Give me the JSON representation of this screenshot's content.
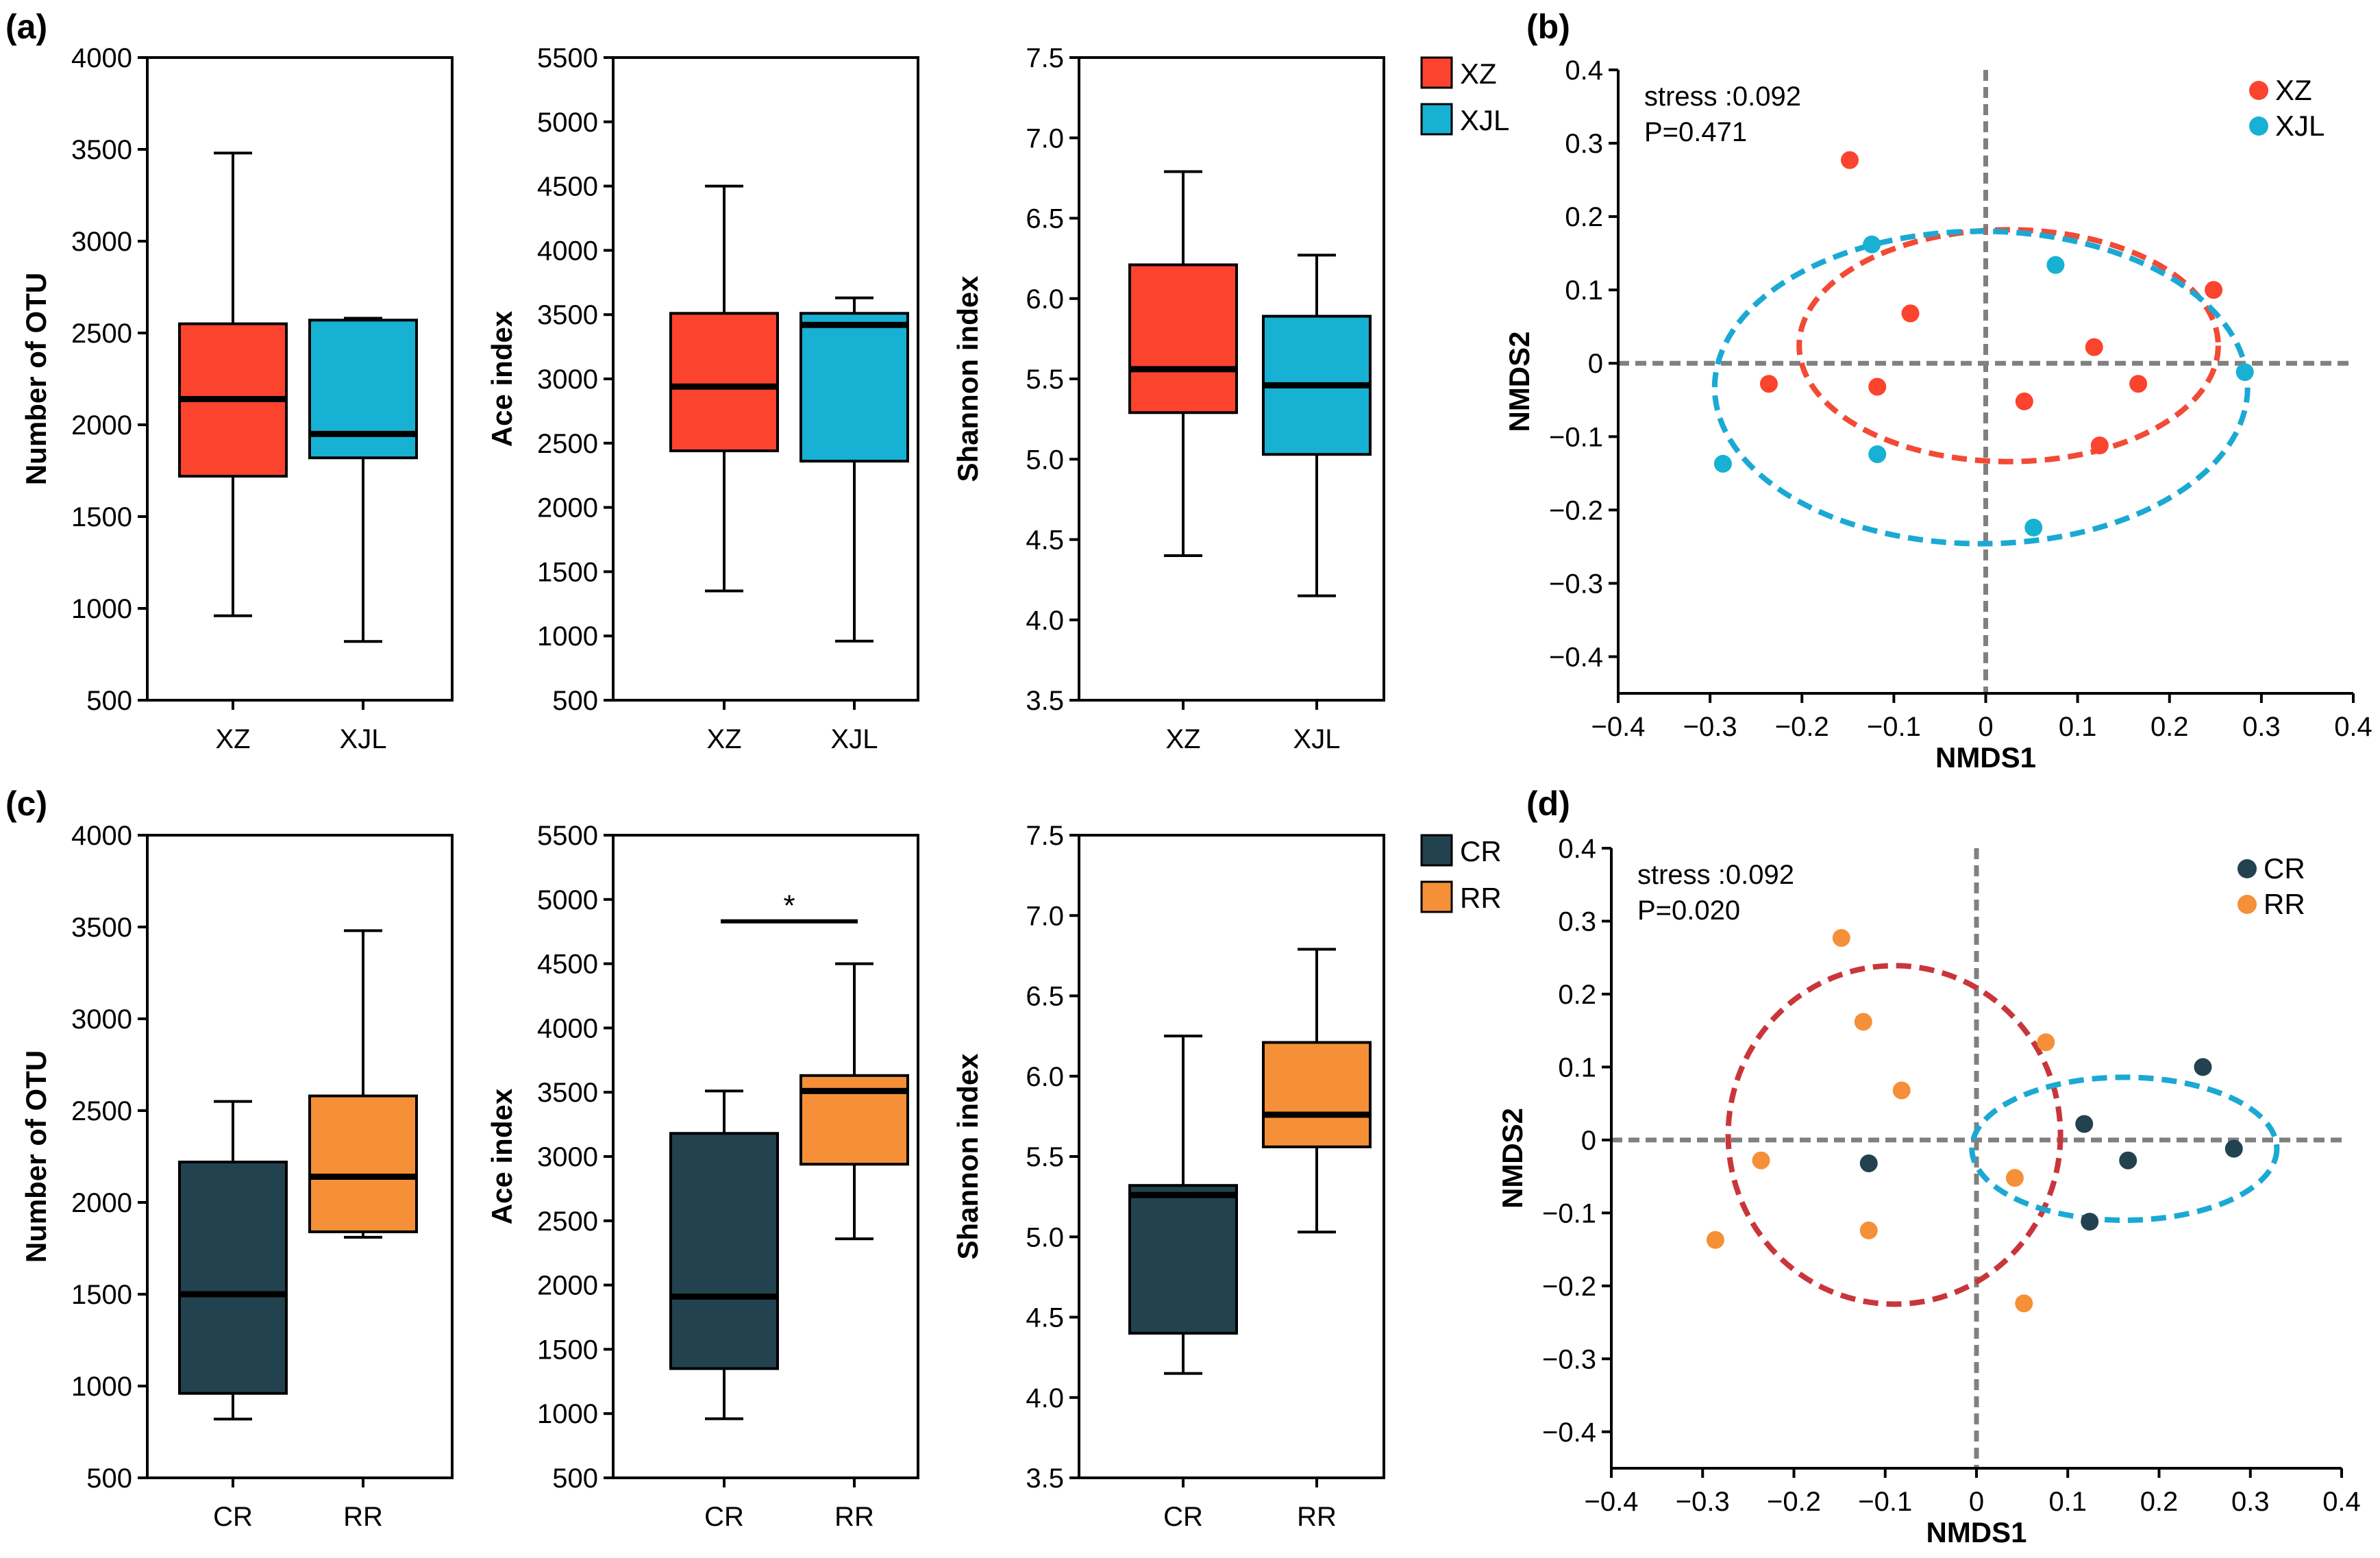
{
  "colors": {
    "XZ": "#fb432d",
    "XJL": "#17b1d3",
    "CR": "#23424f",
    "RR": "#f59038",
    "ellipse_XZ": "#f24a35",
    "ellipse_XJL": "#1ba9d4",
    "ellipse_CR": "#1ba9d4",
    "ellipse_RR": "#c9363a",
    "axis": "#000000",
    "crosshair": "#808080"
  },
  "chart_data": [
    {
      "id": "a1",
      "panel_label": "(a)",
      "type": "box",
      "ylabel": "Number of OTU",
      "ylim": [
        500,
        4000
      ],
      "yticks": [
        500,
        1000,
        1500,
        2000,
        2500,
        3000,
        3500,
        4000
      ],
      "categories": [
        "XZ",
        "XJL"
      ],
      "boxes": [
        {
          "group": "XZ",
          "min": 960,
          "q1": 1720,
          "median": 2140,
          "q3": 2550,
          "max": 3480
        },
        {
          "group": "XJL",
          "min": 820,
          "q1": 1820,
          "median": 1950,
          "q3": 2570,
          "max": 2580
        }
      ]
    },
    {
      "id": "a2",
      "type": "box",
      "ylabel": "Ace index",
      "ylim": [
        500,
        5500
      ],
      "yticks": [
        500,
        1000,
        1500,
        2000,
        2500,
        3000,
        3500,
        4000,
        4500,
        5000,
        5500
      ],
      "categories": [
        "XZ",
        "XJL"
      ],
      "boxes": [
        {
          "group": "XZ",
          "min": 1350,
          "q1": 2440,
          "median": 2940,
          "q3": 3510,
          "max": 4500
        },
        {
          "group": "XJL",
          "min": 960,
          "q1": 2360,
          "median": 3420,
          "q3": 3510,
          "max": 3630
        }
      ]
    },
    {
      "id": "a3",
      "type": "box",
      "ylabel": "Shannon index",
      "ylim": [
        3.5,
        7.5
      ],
      "yticks": [
        "3.5",
        "4.0",
        "4.5",
        "5.0",
        "5.5",
        "6.0",
        "6.5",
        "7.0",
        "7.5"
      ],
      "categories": [
        "XZ",
        "XJL"
      ],
      "legend": [
        "XZ",
        "XJL"
      ],
      "boxes": [
        {
          "group": "XZ",
          "min": 4.4,
          "q1": 5.29,
          "median": 5.56,
          "q3": 6.21,
          "max": 6.79
        },
        {
          "group": "XJL",
          "min": 4.15,
          "q1": 5.03,
          "median": 5.46,
          "q3": 5.89,
          "max": 6.27
        }
      ]
    },
    {
      "id": "b",
      "panel_label": "(b)",
      "type": "scatter",
      "xlabel": "NMDS1",
      "ylabel": "NMDS2",
      "xlim": [
        -0.4,
        0.4
      ],
      "ylim": [
        -0.45,
        0.4
      ],
      "xticks": [
        "−0.4",
        "−0.3",
        "−0.2",
        "−0.1",
        "0",
        "0.1",
        "0.2",
        "0.3",
        "0.4"
      ],
      "yticks": [
        "−0.4",
        "−0.3",
        "−0.2",
        "−0.1",
        "0",
        "0.1",
        "0.2",
        "0.3",
        "0.4"
      ],
      "annotations": [
        "stress :0.092",
        "P=0.471"
      ],
      "legend": [
        "XZ",
        "XJL"
      ],
      "series": [
        {
          "name": "XZ",
          "points": [
            [
              -0.148,
              0.277
            ],
            [
              -0.082,
              0.068
            ],
            [
              -0.236,
              -0.028
            ],
            [
              -0.118,
              -0.032
            ],
            [
              0.042,
              -0.052
            ],
            [
              0.118,
              0.022
            ],
            [
              0.166,
              -0.028
            ],
            [
              0.124,
              -0.112
            ],
            [
              0.248,
              0.1
            ]
          ]
        },
        {
          "name": "XJL",
          "points": [
            [
              -0.286,
              -0.137
            ],
            [
              -0.124,
              0.162
            ],
            [
              -0.118,
              -0.124
            ],
            [
              0.076,
              0.134
            ],
            [
              0.052,
              -0.224
            ],
            [
              0.282,
              -0.012
            ]
          ]
        }
      ],
      "ellipses": [
        {
          "name": "XZ",
          "cx": 0.025,
          "cy": 0.024,
          "rx": 0.228,
          "ry": 0.158
        },
        {
          "name": "XJL",
          "cx": -0.005,
          "cy": -0.033,
          "rx": 0.29,
          "ry": 0.213
        }
      ]
    },
    {
      "id": "c1",
      "panel_label": "(c)",
      "type": "box",
      "ylabel": "Number of OTU",
      "ylim": [
        500,
        4000
      ],
      "yticks": [
        500,
        1000,
        1500,
        2000,
        2500,
        3000,
        3500,
        4000
      ],
      "categories": [
        "CR",
        "RR"
      ],
      "boxes": [
        {
          "group": "CR",
          "min": 820,
          "q1": 960,
          "median": 1500,
          "q3": 2220,
          "max": 2550
        },
        {
          "group": "RR",
          "min": 1810,
          "q1": 1840,
          "median": 2140,
          "q3": 2580,
          "max": 3480
        }
      ]
    },
    {
      "id": "c2",
      "type": "box",
      "ylabel": "Ace index",
      "ylim": [
        500,
        5500
      ],
      "yticks": [
        500,
        1000,
        1500,
        2000,
        2500,
        3000,
        3500,
        4000,
        4500,
        5000,
        5500
      ],
      "categories": [
        "CR",
        "RR"
      ],
      "significance": {
        "label": "*",
        "y": 4830
      },
      "boxes": [
        {
          "group": "CR",
          "min": 960,
          "q1": 1350,
          "median": 1910,
          "q3": 3180,
          "max": 3510
        },
        {
          "group": "RR",
          "min": 2360,
          "q1": 2940,
          "median": 3510,
          "q3": 3630,
          "max": 4500
        }
      ]
    },
    {
      "id": "c3",
      "type": "box",
      "ylabel": "Shannon index",
      "ylim": [
        3.5,
        7.5
      ],
      "yticks": [
        "3.5",
        "4.0",
        "4.5",
        "5.0",
        "5.5",
        "6.0",
        "6.5",
        "7.0",
        "7.5"
      ],
      "categories": [
        "CR",
        "RR"
      ],
      "legend": [
        "CR",
        "RR"
      ],
      "boxes": [
        {
          "group": "CR",
          "min": 4.15,
          "q1": 4.4,
          "median": 5.26,
          "q3": 5.32,
          "max": 6.25
        },
        {
          "group": "RR",
          "min": 5.03,
          "q1": 5.56,
          "median": 5.76,
          "q3": 6.21,
          "max": 6.79
        }
      ]
    },
    {
      "id": "d",
      "panel_label": "(d)",
      "type": "scatter",
      "xlabel": "NMDS1",
      "ylabel": "NMDS2",
      "xlim": [
        -0.4,
        0.4
      ],
      "ylim": [
        -0.45,
        0.4
      ],
      "xticks": [
        "−0.4",
        "−0.3",
        "−0.2",
        "−0.1",
        "0",
        "0.1",
        "0.2",
        "0.3",
        "0.4"
      ],
      "yticks": [
        "−0.4",
        "−0.3",
        "−0.2",
        "−0.1",
        "0",
        "0.1",
        "0.2",
        "0.3",
        "0.4"
      ],
      "annotations": [
        "stress :0.092",
        "P=0.020"
      ],
      "legend": [
        "CR",
        "RR"
      ],
      "series": [
        {
          "name": "CR",
          "points": [
            [
              -0.118,
              -0.032
            ],
            [
              0.118,
              0.022
            ],
            [
              0.166,
              -0.028
            ],
            [
              0.124,
              -0.112
            ],
            [
              0.248,
              0.1
            ],
            [
              0.282,
              -0.012
            ]
          ]
        },
        {
          "name": "RR",
          "points": [
            [
              -0.148,
              0.277
            ],
            [
              -0.124,
              0.162
            ],
            [
              -0.082,
              0.068
            ],
            [
              0.076,
              0.134
            ],
            [
              -0.236,
              -0.028
            ],
            [
              -0.286,
              -0.137
            ],
            [
              -0.118,
              -0.124
            ],
            [
              0.042,
              -0.052
            ],
            [
              0.052,
              -0.224
            ]
          ]
        }
      ],
      "ellipses": [
        {
          "name": "RR",
          "cx": -0.09,
          "cy": 0.007,
          "rx": 0.182,
          "ry": 0.232
        },
        {
          "name": "CR",
          "cx": 0.162,
          "cy": -0.012,
          "rx": 0.167,
          "ry": 0.098
        }
      ]
    }
  ]
}
